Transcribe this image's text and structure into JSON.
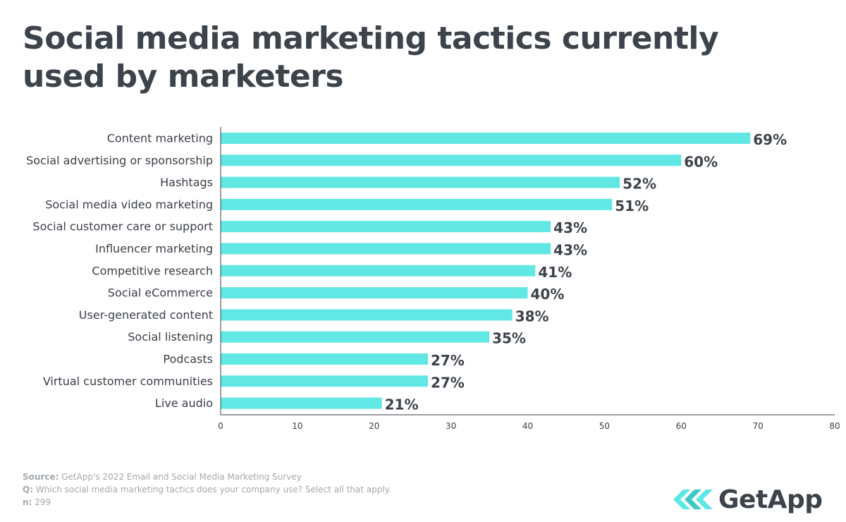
{
  "title": "Social media marketing tactics currently used by marketers",
  "footer": {
    "source_label": "Source:",
    "source_text": "GetApp's 2022 Email and Social Media Marketing Survey",
    "question_label": "Q:",
    "question_text": "Which social media marketing tactics does your company use? Select all that apply.",
    "n_label": "n:",
    "n_text": "299"
  },
  "brand": {
    "name": "GetApp",
    "color": "#5ce8e4"
  },
  "colors": {
    "bar": "#62e8e4",
    "text": "#3d434b",
    "axis": "#3a3f47",
    "footer": "#a3a8ae"
  },
  "chart_data": {
    "type": "bar",
    "orientation": "horizontal",
    "categories": [
      "Content marketing",
      "Social advertising or sponsorship",
      "Hashtags",
      "Social media video marketing",
      "Social customer care or support",
      "Influencer marketing",
      "Competitive research",
      "Social eCommerce",
      "User-generated content",
      "Social listening",
      "Podcasts",
      "Virtual customer communities",
      "Live audio"
    ],
    "values": [
      69,
      60,
      52,
      51,
      43,
      43,
      41,
      40,
      38,
      35,
      27,
      27,
      21
    ],
    "value_labels": [
      "69%",
      "60%",
      "52%",
      "51%",
      "43%",
      "43%",
      "41%",
      "40%",
      "38%",
      "35%",
      "27%",
      "27%",
      "21%"
    ],
    "xlim": [
      0,
      80
    ],
    "xticks": [
      0,
      10,
      20,
      30,
      40,
      50,
      60,
      70,
      80
    ],
    "grid": false
  }
}
